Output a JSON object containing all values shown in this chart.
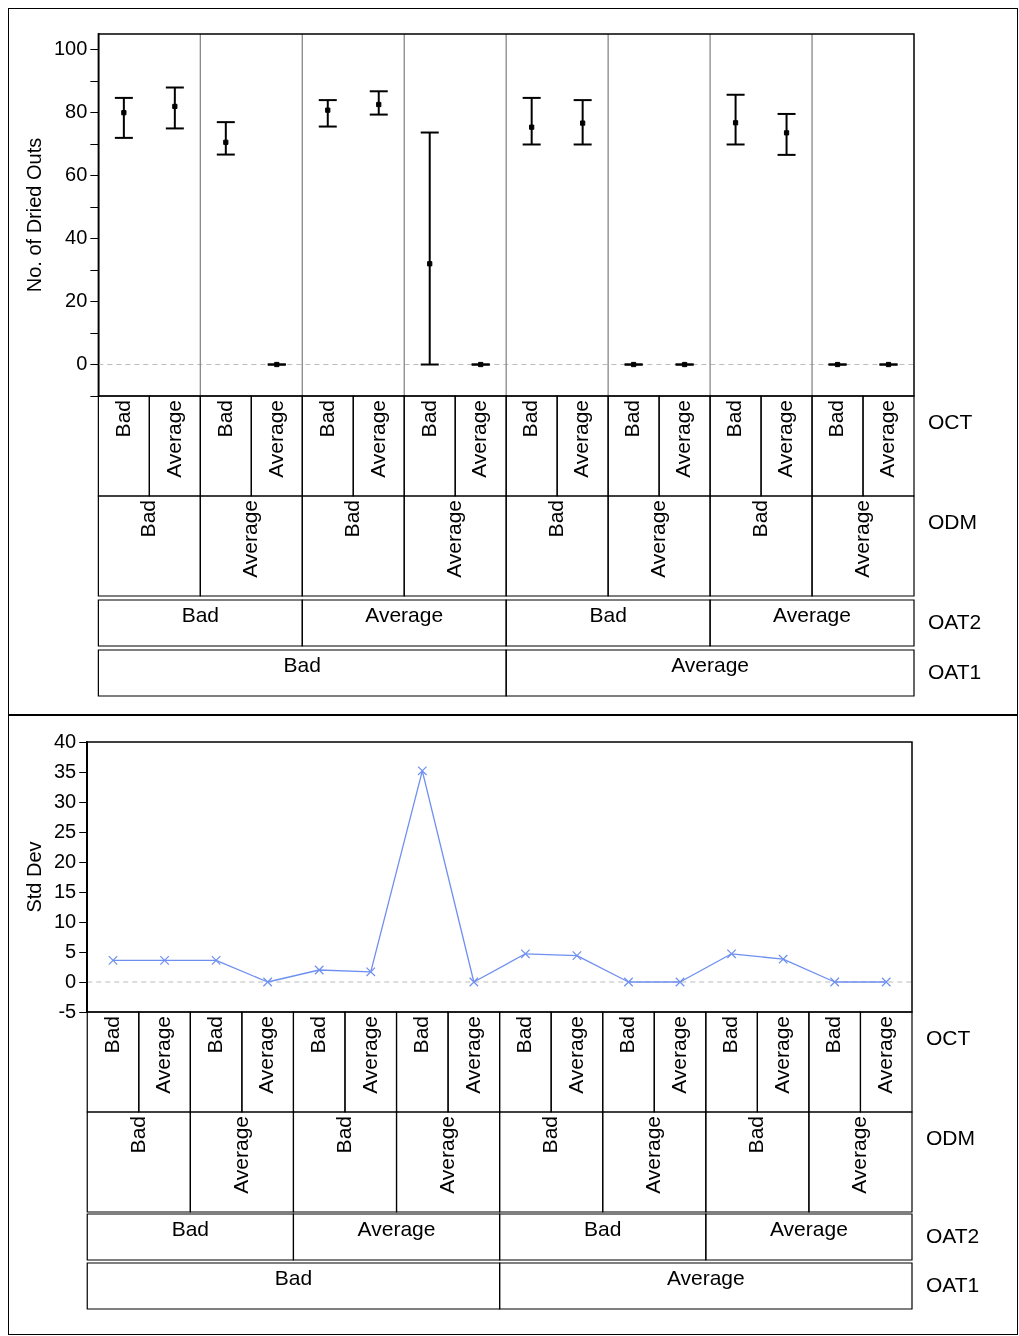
{
  "chart_data": [
    {
      "type": "scatter",
      "ylabel": "No. of Dried Outs",
      "categories": [
        "Bad",
        "Average",
        "Bad",
        "Average",
        "Bad",
        "Average",
        "Bad",
        "Average",
        "Bad",
        "Average",
        "Bad",
        "Average",
        "Bad",
        "Average",
        "Bad",
        "Average"
      ],
      "series": [
        {
          "color": "#000000",
          "values": [
            80,
            82,
            70.6,
            0,
            80.8,
            82.6,
            32,
            0,
            75.4,
            76.7,
            0,
            0,
            76.8,
            73.6,
            0,
            0
          ],
          "errors": [
            [
              72,
              84.7
            ],
            [
              75,
              88
            ],
            [
              66.7,
              77
            ],
            [
              0,
              0
            ],
            [
              75.6,
              84
            ],
            [
              79.4,
              86.8
            ],
            [
              0,
              73.7
            ],
            [
              0,
              0
            ],
            [
              69.9,
              84.7
            ],
            [
              69.9,
              84
            ],
            [
              0,
              0
            ],
            [
              0,
              0
            ],
            [
              69.9,
              85.7
            ],
            [
              66.6,
              79.6
            ],
            [
              0,
              0
            ],
            [
              0,
              0
            ]
          ]
        }
      ],
      "ylim": [
        -10,
        105
      ],
      "yticks": [
        {
          "value": -10,
          "label": null
        },
        0,
        {
          "value": 10,
          "label": null
        },
        20,
        {
          "value": 30,
          "label": null
        },
        40,
        {
          "value": 50,
          "label": null
        },
        60,
        {
          "value": 70,
          "label": null
        },
        80,
        {
          "value": 90,
          "label": null
        },
        100
      ],
      "ref_lines": [
        {
          "axis": "y",
          "value": 0,
          "color": "#bbbbbb",
          "line_style": "dashed"
        }
      ],
      "annotations": [
        "OCT",
        "ODM",
        "Bad",
        "Average",
        "Bad",
        "Average",
        "Bad",
        "Average",
        "Bad",
        "Average",
        "OAT2",
        "Bad",
        "Average",
        "Bad",
        "Average",
        "OAT1",
        "Bad",
        "Average"
      ],
      "marker": "square",
      "grid": false,
      "legend": false
    },
    {
      "type": "line",
      "ylabel": "Std Dev",
      "categories": [
        "Bad",
        "Average",
        "Bad",
        "Average",
        "Bad",
        "Average",
        "Bad",
        "Average",
        "Bad",
        "Average",
        "Bad",
        "Average",
        "Bad",
        "Average",
        "Bad",
        "Average"
      ],
      "series": [
        {
          "color": "#6f8ff0",
          "values": [
            3.6,
            3.6,
            3.6,
            0,
            2,
            1.7,
            35.2,
            0,
            4.7,
            4.4,
            0,
            0,
            4.7,
            3.8,
            0,
            0
          ]
        }
      ],
      "ylim": [
        -5,
        40
      ],
      "yticks": [
        -5,
        0,
        5,
        10,
        15,
        20,
        25,
        30,
        35,
        40
      ],
      "ref_lines": [
        {
          "axis": "y",
          "value": 0,
          "color": "#bbbbbb",
          "line_style": "dashed"
        }
      ],
      "annotations": [
        "OCT",
        "ODM",
        "Bad",
        "Average",
        "Bad",
        "Average",
        "Bad",
        "Average",
        "Bad",
        "Average",
        "OAT2",
        "Bad",
        "Average",
        "Bad",
        "Average",
        "OAT1",
        "Bad",
        "Average"
      ],
      "marker": "cross",
      "line_style": "solid",
      "grid": false,
      "legend": false
    }
  ]
}
